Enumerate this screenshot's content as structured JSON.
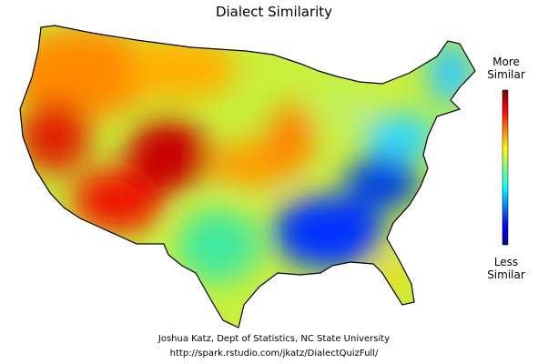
{
  "title": "Dialect Similarity",
  "legend": {
    "high_label": "More Similar",
    "low_label": "Less Similar"
  },
  "credits": {
    "author": "Joshua Katz, Dept of Statistics, NC State University",
    "url": "http://spark.rstudio.com/jkatz/DialectQuizFull/"
  }
}
